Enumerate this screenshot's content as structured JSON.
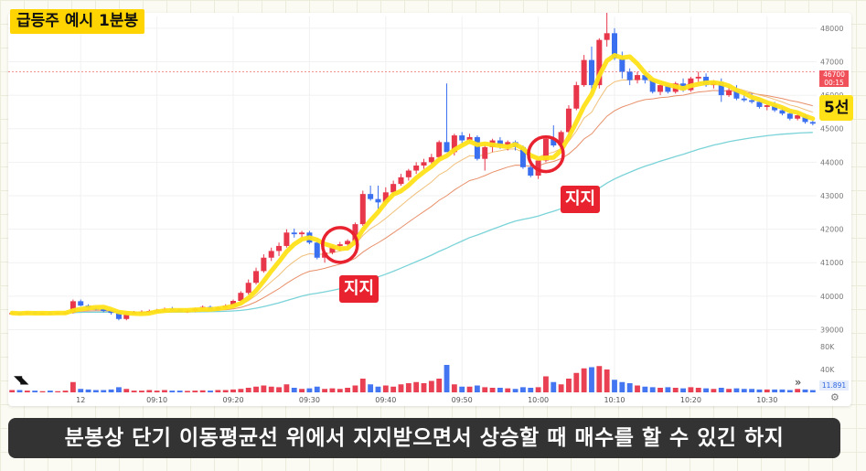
{
  "title": "급등주 예시 1분봉",
  "support_labels": [
    "지지",
    "지지"
  ],
  "ma_label": "5선",
  "price_tag": {
    "price": "46700",
    "time": "00:15"
  },
  "volume_tag": "11.891",
  "subtitle": "분봉상 단기 이동평균선 위에서 지지받으면서 상승할 때 매수를 할 수 있긴 하지",
  "colors": {
    "up": "#e8374a",
    "down": "#3a6ff0",
    "ma5": "#ffe118",
    "ma_short": "#f0c07a",
    "ma_mid": "#e8906a",
    "ma_long": "#7ad3d8",
    "support_circle": "#e8232f"
  },
  "icons": [
    "tradingview-logo-icon",
    "chevron-right-icon",
    "gear-icon"
  ],
  "chart_data": {
    "type": "candlestick",
    "y_ticks": [
      39000,
      40000,
      41000,
      42000,
      43000,
      44000,
      45000,
      46000,
      47000,
      48000
    ],
    "ylim": [
      38850,
      48350
    ],
    "volume_ticks": [
      "80K",
      "40K"
    ],
    "volume_max": 80000,
    "x_ticks": [
      {
        "idx": 9,
        "label": "12"
      },
      {
        "idx": 19,
        "label": "09:10"
      },
      {
        "idx": 29,
        "label": "09:20"
      },
      {
        "idx": 39,
        "label": "09:30"
      },
      {
        "idx": 49,
        "label": "09:40"
      },
      {
        "idx": 59,
        "label": "09:50"
      },
      {
        "idx": 69,
        "label": "10:00"
      },
      {
        "idx": 79,
        "label": "10:10"
      },
      {
        "idx": 89,
        "label": "10:20"
      },
      {
        "idx": 99,
        "label": "10:30"
      }
    ],
    "candles": [
      [
        39500,
        39550,
        39450,
        39500
      ],
      [
        39500,
        39520,
        39430,
        39470
      ],
      [
        39470,
        39560,
        39450,
        39520
      ],
      [
        39520,
        39550,
        39440,
        39480
      ],
      [
        39480,
        39520,
        39450,
        39500
      ],
      [
        39500,
        39540,
        39460,
        39490
      ],
      [
        39490,
        39520,
        39460,
        39500
      ],
      [
        39500,
        39540,
        39470,
        39510
      ],
      [
        39510,
        39900,
        39480,
        39850
      ],
      [
        39850,
        39900,
        39700,
        39720
      ],
      [
        39720,
        39760,
        39600,
        39640
      ],
      [
        39640,
        39680,
        39580,
        39620
      ],
      [
        39620,
        39650,
        39520,
        39560
      ],
      [
        39560,
        39600,
        39450,
        39500
      ],
      [
        39500,
        39560,
        39280,
        39320
      ],
      [
        39320,
        39540,
        39280,
        39500
      ],
      [
        39500,
        39560,
        39460,
        39520
      ],
      [
        39520,
        39580,
        39480,
        39540
      ],
      [
        39540,
        39600,
        39500,
        39560
      ],
      [
        39560,
        39620,
        39520,
        39580
      ],
      [
        39580,
        39660,
        39540,
        39620
      ],
      [
        39620,
        39680,
        39580,
        39600
      ],
      [
        39600,
        39640,
        39520,
        39540
      ],
      [
        39540,
        39600,
        39500,
        39560
      ],
      [
        39560,
        39660,
        39520,
        39640
      ],
      [
        39640,
        39720,
        39600,
        39680
      ],
      [
        39680,
        39720,
        39560,
        39600
      ],
      [
        39600,
        39700,
        39560,
        39660
      ],
      [
        39660,
        39760,
        39620,
        39720
      ],
      [
        39720,
        39900,
        39700,
        39860
      ],
      [
        39860,
        40150,
        39820,
        40100
      ],
      [
        40100,
        40500,
        40050,
        40400
      ],
      [
        40400,
        40850,
        40350,
        40750
      ],
      [
        40750,
        41250,
        40700,
        41150
      ],
      [
        41150,
        41450,
        41050,
        41350
      ],
      [
        41350,
        41600,
        41200,
        41500
      ],
      [
        41500,
        42000,
        41450,
        41900
      ],
      [
        41900,
        42020,
        41750,
        41850
      ],
      [
        41850,
        41950,
        41750,
        41900
      ],
      [
        41900,
        41950,
        41550,
        41600
      ],
      [
        41600,
        41700,
        41100,
        41150
      ],
      [
        41150,
        41350,
        41000,
        41300
      ],
      [
        41300,
        41550,
        41250,
        41500
      ],
      [
        41500,
        41620,
        41350,
        41550
      ],
      [
        41550,
        41700,
        41450,
        41650
      ],
      [
        41650,
        42200,
        41600,
        42150
      ],
      [
        42150,
        43150,
        42100,
        43050
      ],
      [
        43050,
        43300,
        42850,
        42900
      ],
      [
        42900,
        43300,
        42600,
        42800
      ],
      [
        42800,
        43250,
        42700,
        43100
      ],
      [
        43100,
        43450,
        43000,
        43350
      ],
      [
        43350,
        43650,
        43300,
        43550
      ],
      [
        43550,
        43800,
        43450,
        43750
      ],
      [
        43750,
        44000,
        43650,
        43900
      ],
      [
        43900,
        44100,
        43800,
        44000
      ],
      [
        44000,
        44250,
        43950,
        44150
      ],
      [
        44150,
        44650,
        44100,
        44600
      ],
      [
        44600,
        46350,
        44350,
        44300
      ],
      [
        44300,
        44850,
        44200,
        44800
      ],
      [
        44800,
        44900,
        44500,
        44650
      ],
      [
        44650,
        44850,
        44550,
        44750
      ],
      [
        44750,
        44800,
        44050,
        44100
      ],
      [
        44100,
        44550,
        43750,
        44450
      ],
      [
        44450,
        44700,
        44300,
        44650
      ],
      [
        44650,
        44750,
        44400,
        44500
      ],
      [
        44500,
        44650,
        44350,
        44600
      ],
      [
        44600,
        44650,
        44350,
        44450
      ],
      [
        44450,
        44500,
        43800,
        43850
      ],
      [
        43850,
        44050,
        43550,
        43600
      ],
      [
        43600,
        44100,
        43500,
        44050
      ],
      [
        44050,
        44800,
        44000,
        44700
      ],
      [
        44700,
        45100,
        44450,
        44500
      ],
      [
        44500,
        44950,
        44400,
        44900
      ],
      [
        44900,
        45700,
        44850,
        45600
      ],
      [
        45600,
        46400,
        45550,
        46300
      ],
      [
        46300,
        47200,
        46250,
        47050
      ],
      [
        47050,
        47450,
        46100,
        46300
      ],
      [
        46300,
        47700,
        46200,
        47650
      ],
      [
        47650,
        48500,
        47450,
        47850
      ],
      [
        47850,
        48000,
        47050,
        47100
      ],
      [
        47100,
        47300,
        46500,
        46700
      ],
      [
        46700,
        46800,
        46300,
        46450
      ],
      [
        46450,
        46700,
        46350,
        46600
      ],
      [
        46600,
        46650,
        46350,
        46450
      ],
      [
        46450,
        46500,
        46050,
        46100
      ],
      [
        46100,
        46350,
        46000,
        46300
      ],
      [
        46300,
        46350,
        46050,
        46100
      ],
      [
        46100,
        46400,
        46050,
        46350
      ],
      [
        46350,
        46500,
        46100,
        46150
      ],
      [
        46150,
        46550,
        46100,
        46500
      ],
      [
        46500,
        46700,
        46400,
        46550
      ],
      [
        46550,
        46650,
        46250,
        46300
      ],
      [
        46300,
        46450,
        46200,
        46400
      ],
      [
        46400,
        46500,
        45800,
        46000
      ],
      [
        46000,
        46250,
        45950,
        46150
      ],
      [
        46150,
        46300,
        45850,
        45900
      ],
      [
        45900,
        46100,
        45800,
        45850
      ],
      [
        45850,
        46050,
        45750,
        45800
      ],
      [
        45800,
        45850,
        45600,
        45650
      ],
      [
        45650,
        45750,
        45550,
        45700
      ],
      [
        45700,
        45800,
        45500,
        45550
      ],
      [
        45550,
        45650,
        45400,
        45450
      ],
      [
        45450,
        45500,
        45250,
        45300
      ],
      [
        45300,
        45450,
        45250,
        45400
      ],
      [
        45400,
        45450,
        45150,
        45200
      ],
      [
        45200,
        45250,
        45100,
        45150
      ]
    ],
    "volumes": [
      4000,
      4000,
      3000,
      3000,
      2000,
      3000,
      2000,
      3000,
      18000,
      6000,
      5000,
      4000,
      4000,
      5000,
      9000,
      6000,
      3000,
      3000,
      4000,
      3000,
      4000,
      3000,
      3000,
      2500,
      3000,
      3500,
      3000,
      4000,
      4000,
      5000,
      6000,
      8000,
      10000,
      12000,
      10000,
      9000,
      14000,
      8000,
      6000,
      7000,
      10000,
      6000,
      7000,
      6000,
      8000,
      12000,
      24000,
      14000,
      10000,
      12000,
      10000,
      14000,
      16000,
      18000,
      16000,
      20000,
      24000,
      48000,
      14000,
      10000,
      10000,
      12000,
      9000,
      8000,
      8000,
      7000,
      6000,
      9000,
      8000,
      9000,
      28000,
      18000,
      14000,
      24000,
      34000,
      42000,
      44000,
      46000,
      40000,
      22000,
      18000,
      16000,
      12000,
      10000,
      9000,
      8000,
      9000,
      8000,
      7000,
      9000,
      8000,
      7000,
      6000,
      8000,
      6000,
      7000,
      6000,
      6000,
      5000,
      5000,
      5000,
      5000,
      4000,
      6000,
      5000,
      4000
    ]
  }
}
